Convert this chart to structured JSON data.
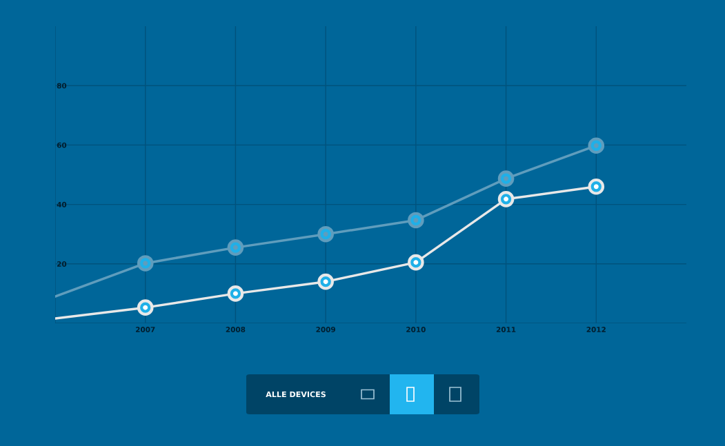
{
  "chart_data": {
    "type": "line",
    "x": [
      2006,
      2007,
      2008,
      2009,
      2010,
      2011,
      2012
    ],
    "series": [
      {
        "color": "#5f9dbd",
        "values": [
          9,
          20.2,
          25.5,
          30,
          34.7,
          48.7,
          59.8
        ]
      },
      {
        "color": "#e8e8e8",
        "values": [
          1.6,
          5.3,
          10,
          14,
          20.5,
          41.8,
          46
        ]
      }
    ],
    "xlim": [
      2006,
      2013
    ],
    "ylim": [
      0,
      100
    ],
    "xticks": [
      {
        "value": 2006,
        "label": null
      },
      2007,
      2008,
      2009,
      2010,
      2011,
      2012
    ],
    "yticks": [
      {
        "value": 0,
        "label": null
      },
      20,
      40,
      60,
      80
    ],
    "grid": true,
    "marker": "circle",
    "line_style": "solid",
    "annotations": [
      "ALLE DEVICES"
    ]
  }
}
